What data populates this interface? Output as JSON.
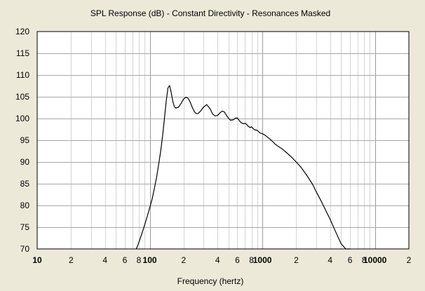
{
  "chart_data": {
    "type": "line",
    "title": "SPL Response (dB) - Constant Directivity - Resonances Masked",
    "xlabel": "Frequency (hertz)",
    "ylabel": "",
    "x_scale": "log",
    "xlim": [
      10,
      20000
    ],
    "ylim": [
      70,
      120
    ],
    "grid": true,
    "y_ticks": [
      120,
      115,
      110,
      105,
      100,
      95,
      90,
      85,
      80,
      75,
      70
    ],
    "x_ticks": [
      {
        "value": 10,
        "label": "10"
      },
      {
        "value": 20,
        "label": "2"
      },
      {
        "value": 40,
        "label": "4"
      },
      {
        "value": 60,
        "label": "6"
      },
      {
        "value": 80,
        "label": "8"
      },
      {
        "value": 100,
        "label": "100"
      },
      {
        "value": 200,
        "label": "2"
      },
      {
        "value": 400,
        "label": "4"
      },
      {
        "value": 600,
        "label": "6"
      },
      {
        "value": 800,
        "label": "8"
      },
      {
        "value": 1000,
        "label": "1000"
      },
      {
        "value": 2000,
        "label": "2"
      },
      {
        "value": 4000,
        "label": "4"
      },
      {
        "value": 6000,
        "label": "6"
      },
      {
        "value": 8000,
        "label": "8"
      },
      {
        "value": 10000,
        "label": "10000"
      },
      {
        "value": 20000,
        "label": "2"
      }
    ],
    "series": [
      {
        "x": [
          76,
          80,
          85,
          90,
          95,
          100,
          105,
          110,
          115,
          120,
          125,
          130,
          135,
          140,
          145,
          150,
          155,
          160,
          165,
          170,
          180,
          190,
          200,
          210,
          220,
          230,
          240,
          250,
          260,
          270,
          280,
          300,
          320,
          340,
          350,
          360,
          380,
          400,
          420,
          440,
          460,
          480,
          500,
          520,
          550,
          580,
          600,
          620,
          650,
          680,
          700,
          720,
          750,
          780,
          800,
          850,
          900,
          950,
          1000,
          1050,
          1100,
          1200,
          1300,
          1400,
          1500,
          1600,
          1800,
          2000,
          2200,
          2500,
          2800,
          3000,
          3300,
          3600,
          4000,
          4500,
          5000,
          5500,
          6000
        ],
        "y": [
          70,
          71.5,
          73.5,
          75.5,
          77.5,
          79.5,
          81.5,
          84,
          86.5,
          89.5,
          92.5,
          96,
          100,
          104,
          107,
          107.6,
          106,
          104,
          102.8,
          102.4,
          102.6,
          103.5,
          104.5,
          104.9,
          104.6,
          103.6,
          102.4,
          101.5,
          101.1,
          101.2,
          101.6,
          102.6,
          103.2,
          102.4,
          101.8,
          101.1,
          100.6,
          100.7,
          101.3,
          101.7,
          101.5,
          100.7,
          100.1,
          99.6,
          99.7,
          100.1,
          100.1,
          99.6,
          99.0,
          98.8,
          98.9,
          98.7,
          98.2,
          97.9,
          98.1,
          97.4,
          97.3,
          96.7,
          96.5,
          96.2,
          95.8,
          95.0,
          94.1,
          93.5,
          93.0,
          92.4,
          91.2,
          90.0,
          88.8,
          86.8,
          84.8,
          83.2,
          81.2,
          79.2,
          76.8,
          73.8,
          71.2,
          70.0,
          70.0
        ]
      }
    ]
  }
}
